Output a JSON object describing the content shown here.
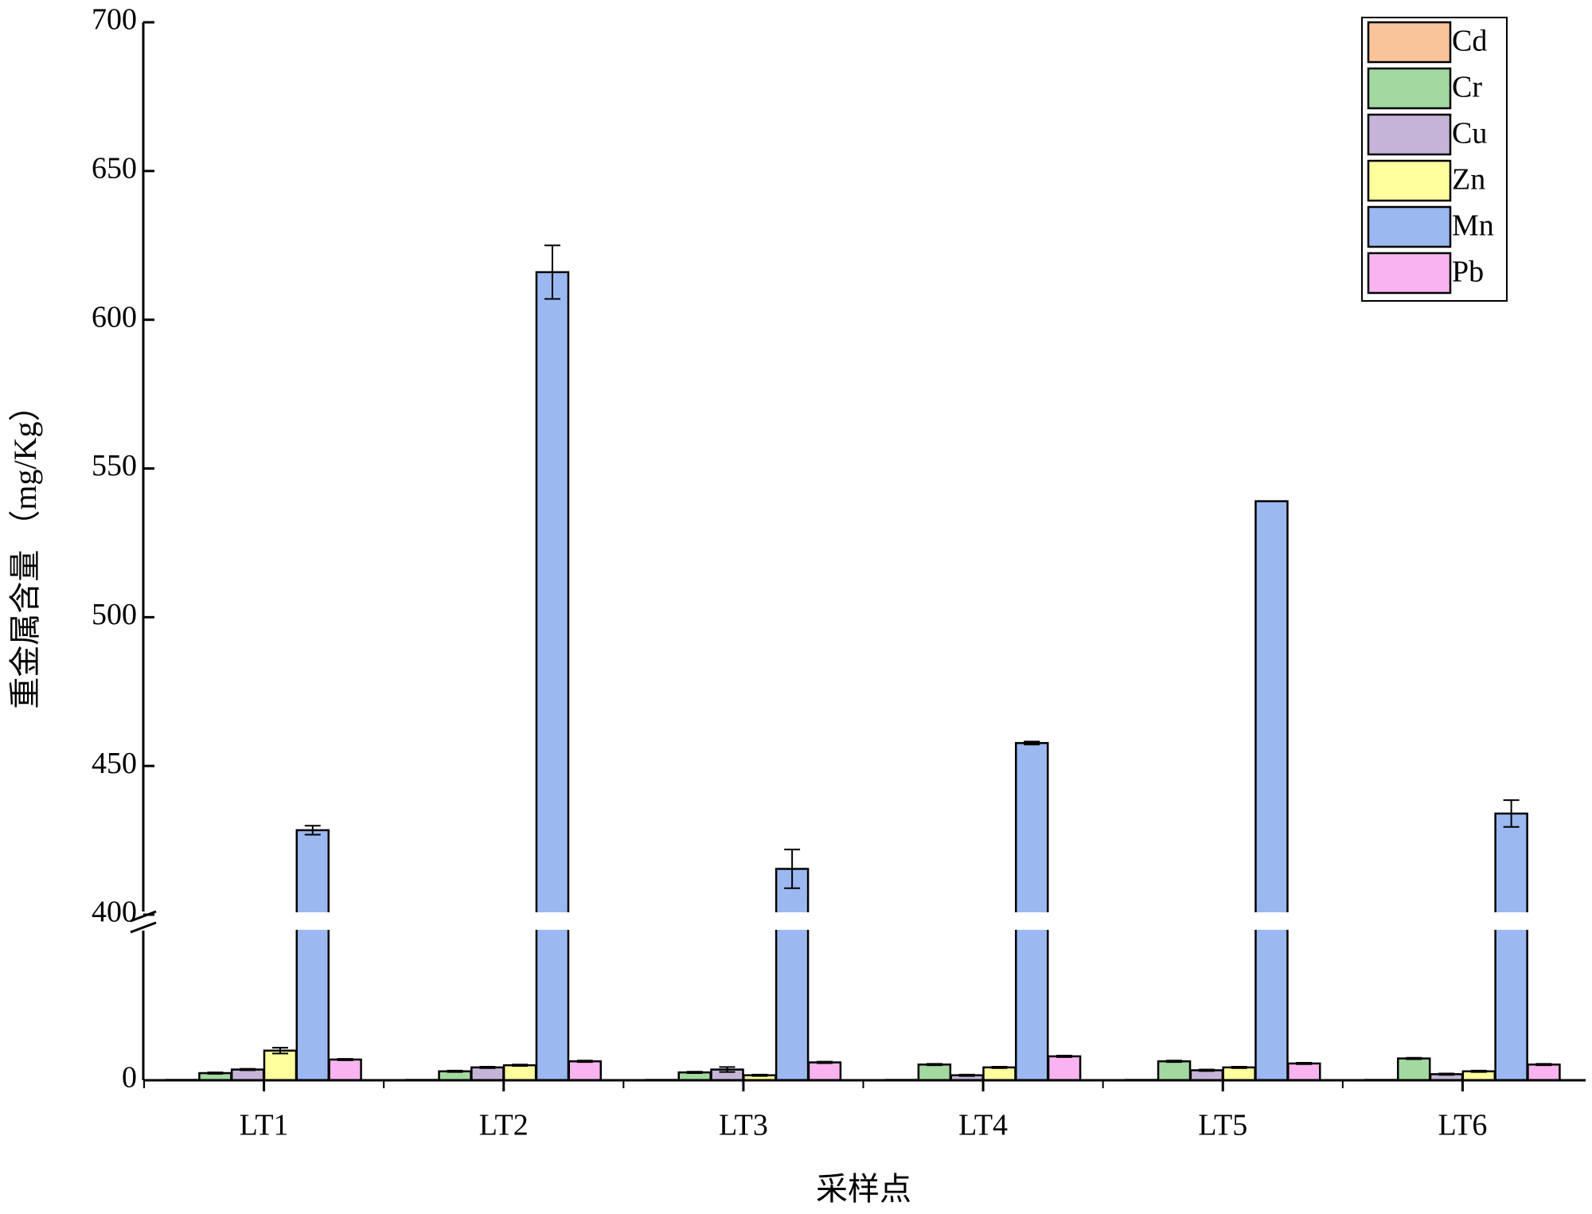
{
  "chart_data": {
    "type": "bar",
    "x_label": "采样点",
    "y_label": "重金属含量 （mg/Kg）",
    "categories": [
      "LT1",
      "LT2",
      "LT3",
      "LT4",
      "LT5",
      "LT6"
    ],
    "ylim_lower": [
      0,
      45
    ],
    "yticks_lower": [
      0
    ],
    "ylim_upper": [
      400,
      700
    ],
    "yticks_upper": [
      400,
      450,
      500,
      550,
      600,
      650,
      700
    ],
    "series": [
      {
        "name": "Cd",
        "color": "#f9c49a",
        "values": [
          0.1,
          0.1,
          0.1,
          0.1,
          0.1,
          0.1
        ],
        "errors": [
          0,
          0,
          0,
          0,
          0,
          0
        ]
      },
      {
        "name": "Cr",
        "color": "#a3d9a1",
        "values": [
          2,
          2.5,
          2.2,
          4.4,
          5.3,
          6.1
        ],
        "errors": [
          0.2,
          0.2,
          0.2,
          0.2,
          0.2,
          0.2
        ]
      },
      {
        "name": "Cu",
        "color": "#c6b4d8",
        "values": [
          3,
          3.6,
          3,
          1.4,
          2.8,
          1.7
        ],
        "errors": [
          0.2,
          0.2,
          0.7,
          0.2,
          0.2,
          0.2
        ]
      },
      {
        "name": "Zn",
        "color": "#ffff9e",
        "values": [
          8.3,
          4.2,
          1.4,
          3.6,
          3.6,
          2.5
        ],
        "errors": [
          0.8,
          0.2,
          0.2,
          0.2,
          0.2,
          0.2
        ]
      },
      {
        "name": "Mn",
        "color": "#9bb8f0",
        "values": [
          428.4,
          616,
          415.4,
          457.7,
          539,
          434
        ],
        "errors": [
          1.5,
          9,
          6.5,
          0.5,
          0,
          4.5
        ]
      },
      {
        "name": "Pb",
        "color": "#f9b3f0",
        "values": [
          5.8,
          5.3,
          5,
          6.7,
          4.7,
          4.4
        ],
        "errors": [
          0.2,
          0.2,
          0.2,
          0.2,
          0.2,
          0.2
        ]
      }
    ]
  }
}
